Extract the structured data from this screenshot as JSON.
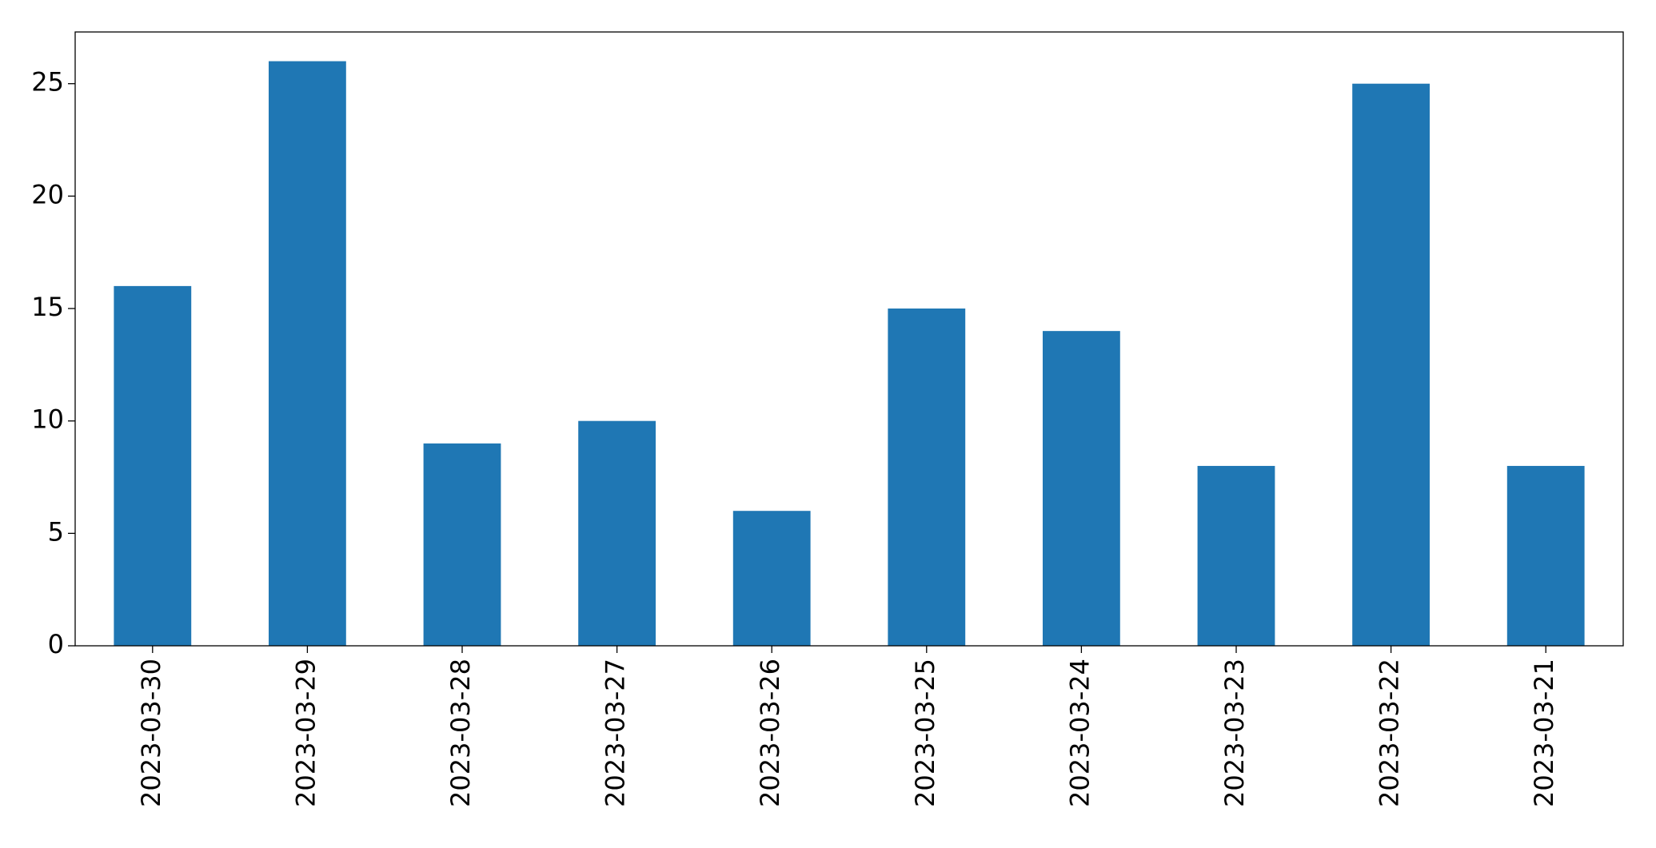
{
  "chart_data": {
    "type": "bar",
    "categories": [
      "2023-03-30",
      "2023-03-29",
      "2023-03-28",
      "2023-03-27",
      "2023-03-26",
      "2023-03-25",
      "2023-03-24",
      "2023-03-23",
      "2023-03-22",
      "2023-03-21"
    ],
    "values": [
      16,
      26,
      9,
      10,
      6,
      15,
      14,
      8,
      25,
      8
    ],
    "color": "#1f77b4",
    "ylim": [
      0,
      27.3
    ],
    "yticks": [
      0,
      5,
      10,
      15,
      20,
      25
    ],
    "grid": false
  }
}
